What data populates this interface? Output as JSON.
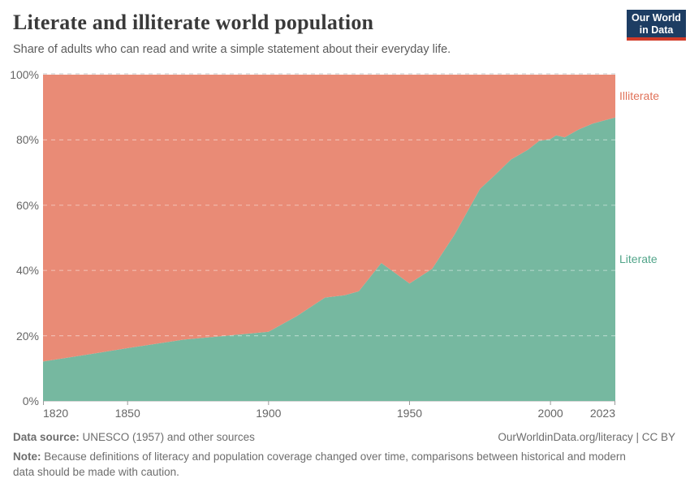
{
  "header": {
    "title": "Literate and illiterate world population",
    "subtitle": "Share of adults who can read and write a simple statement about their everyday life.",
    "logo": {
      "line1": "Our World",
      "line2": "in Data"
    }
  },
  "chart_data": {
    "type": "area",
    "stacked": true,
    "unit": "%",
    "grid": true,
    "legend_position": "right-edge-labels",
    "x_years": [
      1820,
      1835,
      1850,
      1860,
      1870,
      1880,
      1890,
      1900,
      1910,
      1920,
      1927,
      1932,
      1940,
      1950,
      1958,
      1966,
      1975,
      1980,
      1986,
      1992,
      1996,
      2000,
      2002,
      2005,
      2010,
      2015,
      2020,
      2023
    ],
    "series": [
      {
        "name": "Literate",
        "fill": "#76b8a0",
        "label_color": "#52a58a",
        "values": [
          12.1,
          14.1,
          16.2,
          17.5,
          18.8,
          19.6,
          20.4,
          21.2,
          26.0,
          31.7,
          32.4,
          33.6,
          42.3,
          36.0,
          40.5,
          51.0,
          65.0,
          69.0,
          74.0,
          77.0,
          79.7,
          80.3,
          81.4,
          80.8,
          83.2,
          85.0,
          86.2,
          86.9
        ]
      },
      {
        "name": "Illiterate",
        "fill": "#e98b76",
        "label_color": "#e07259",
        "values": [
          87.9,
          85.9,
          83.8,
          82.5,
          81.2,
          80.4,
          79.6,
          78.8,
          74.0,
          68.3,
          67.6,
          66.4,
          57.7,
          64.0,
          59.5,
          49.0,
          35.0,
          31.0,
          26.0,
          23.0,
          20.3,
          19.7,
          18.6,
          19.2,
          16.8,
          15.0,
          13.8,
          13.1
        ]
      }
    ],
    "ylim": [
      0,
      100
    ],
    "y_ticks": [
      {
        "value": 0,
        "label": "0%"
      },
      {
        "value": 20,
        "label": "20%"
      },
      {
        "value": 40,
        "label": "40%"
      },
      {
        "value": 60,
        "label": "60%"
      },
      {
        "value": 80,
        "label": "80%"
      },
      {
        "value": 100,
        "label": "100%"
      }
    ],
    "x_ticks": [
      {
        "value": 1820,
        "label": "1820",
        "align": "left"
      },
      {
        "value": 1850,
        "label": "1850",
        "align": "center"
      },
      {
        "value": 1900,
        "label": "1900",
        "align": "center"
      },
      {
        "value": 1950,
        "label": "1950",
        "align": "center"
      },
      {
        "value": 2000,
        "label": "2000",
        "align": "center"
      },
      {
        "value": 2023,
        "label": "2023",
        "align": "right"
      }
    ]
  },
  "footer": {
    "datasource_label": "Data source:",
    "datasource_text": " UNESCO (1957) and other sources",
    "rights": "OurWorldinData.org/literacy | CC BY",
    "note_label": "Note:",
    "note_text": " Because definitions of literacy and population coverage changed over time, comparisons between historical and modern data should be made with caution."
  }
}
